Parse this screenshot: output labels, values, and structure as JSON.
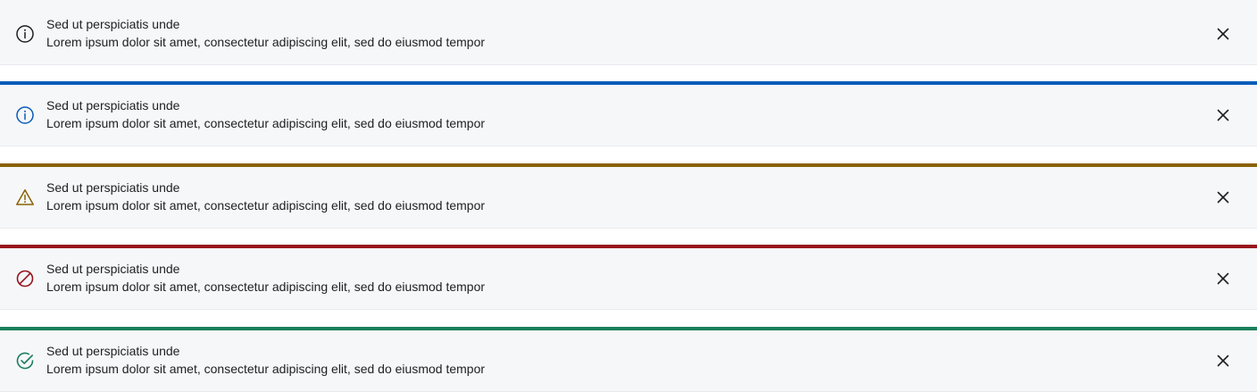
{
  "banners": [
    {
      "variant": "neutral",
      "accent_color": "",
      "icon": "info-icon",
      "icon_color": "#1d1f23",
      "title": "Sed ut perspiciatis unde",
      "body": "Lorem ipsum dolor sit amet, consectetur adipiscing elit, sed do eiusmod tempor",
      "close_icon": "close-icon"
    },
    {
      "variant": "info",
      "accent_color": "#0b5cba",
      "icon": "info-icon",
      "icon_color": "#0b5cba",
      "title": "Sed ut perspiciatis unde",
      "body": "Lorem ipsum dolor sit amet, consectetur adipiscing elit, sed do eiusmod tempor",
      "close_icon": "close-icon"
    },
    {
      "variant": "warning",
      "accent_color": "#8a6205",
      "icon": "warning-icon",
      "icon_color": "#8a6205",
      "title": "Sed ut perspiciatis unde",
      "body": "Lorem ipsum dolor sit amet, consectetur adipiscing elit, sed do eiusmod tempor",
      "close_icon": "close-icon"
    },
    {
      "variant": "error",
      "accent_color": "#97131c",
      "icon": "prohibited-icon",
      "icon_color": "#97131c",
      "title": "Sed ut perspiciatis unde",
      "body": "Lorem ipsum dolor sit amet, consectetur adipiscing elit, sed do eiusmod tempor",
      "close_icon": "close-icon"
    },
    {
      "variant": "success",
      "accent_color": "#1a7f5a",
      "icon": "check-circle-icon",
      "icon_color": "#1a7f5a",
      "title": "Sed ut perspiciatis unde",
      "body": "Lorem ipsum dolor sit amet, consectetur adipiscing elit, sed do eiusmod tempor",
      "close_icon": "close-icon"
    }
  ]
}
